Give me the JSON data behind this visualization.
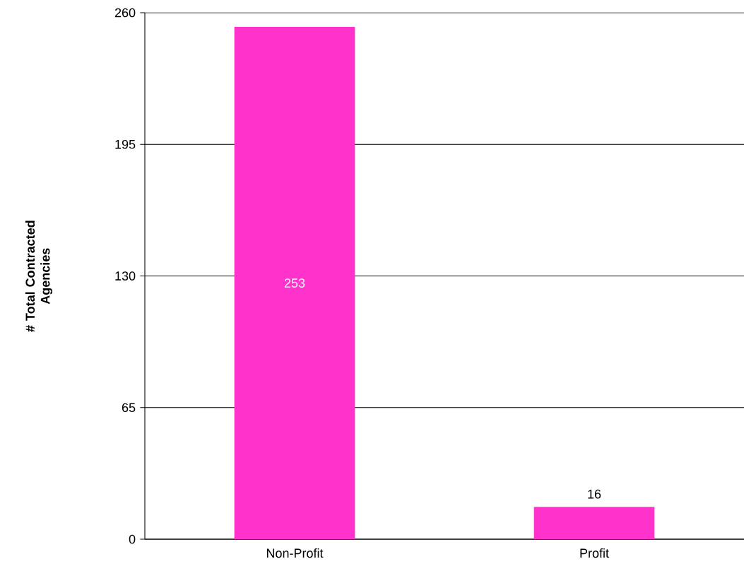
{
  "chart_data": {
    "type": "bar",
    "ylabel": "# Total Contracted Agencies",
    "categories": [
      "Non-Profit",
      "Profit"
    ],
    "values": [
      253,
      16
    ],
    "color": "#ff33cc",
    "ylim": [
      0,
      260
    ],
    "yticks": [
      0,
      65,
      130,
      195,
      260
    ],
    "grid": "y",
    "data_labels": true
  }
}
